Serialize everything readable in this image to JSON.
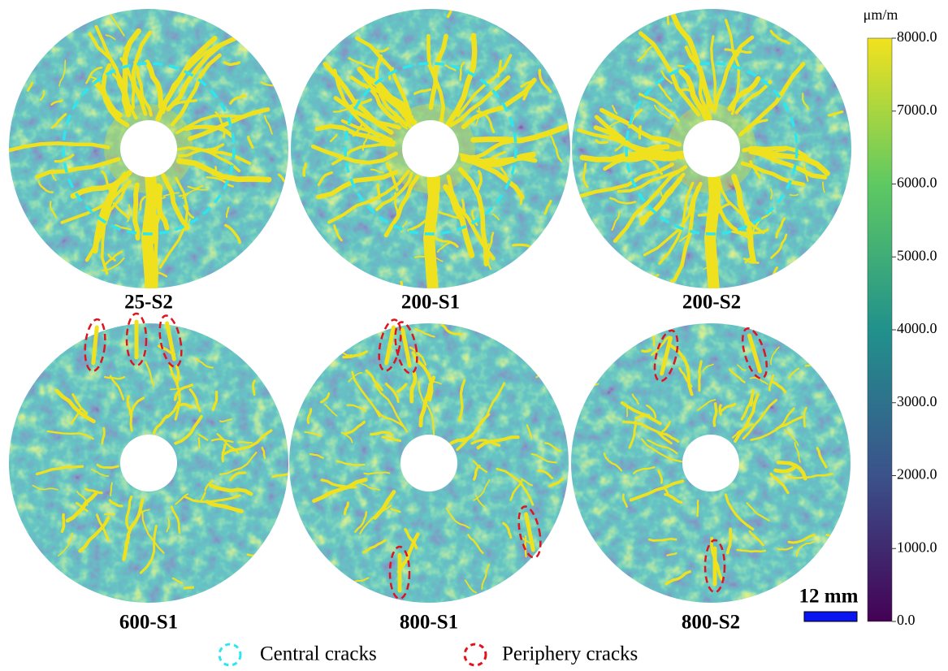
{
  "panels": [
    {
      "label": "25-S2"
    },
    {
      "label": "200-S1"
    },
    {
      "label": "200-S2"
    },
    {
      "label": "600-S1"
    },
    {
      "label": "800-S1"
    },
    {
      "label": "800-S2"
    }
  ],
  "colorbar": {
    "unit": "μm/m",
    "range": [
      0,
      8000
    ],
    "ticks": [
      {
        "value": 0,
        "label": "0.0"
      },
      {
        "value": 1000,
        "label": "1000.0"
      },
      {
        "value": 2000,
        "label": "2000.0"
      },
      {
        "value": 3000,
        "label": "3000.0"
      },
      {
        "value": 4000,
        "label": "4000.0"
      },
      {
        "value": 5000,
        "label": "5000.0"
      },
      {
        "value": 6000,
        "label": "6000.0"
      },
      {
        "value": 7000,
        "label": "7000.0"
      },
      {
        "value": 8000,
        "label": "8000.0"
      }
    ]
  },
  "scale_bar": {
    "label": "12 mm"
  },
  "legend": [
    {
      "label": "Central cracks"
    },
    {
      "label": "Periphery cracks"
    }
  ]
}
